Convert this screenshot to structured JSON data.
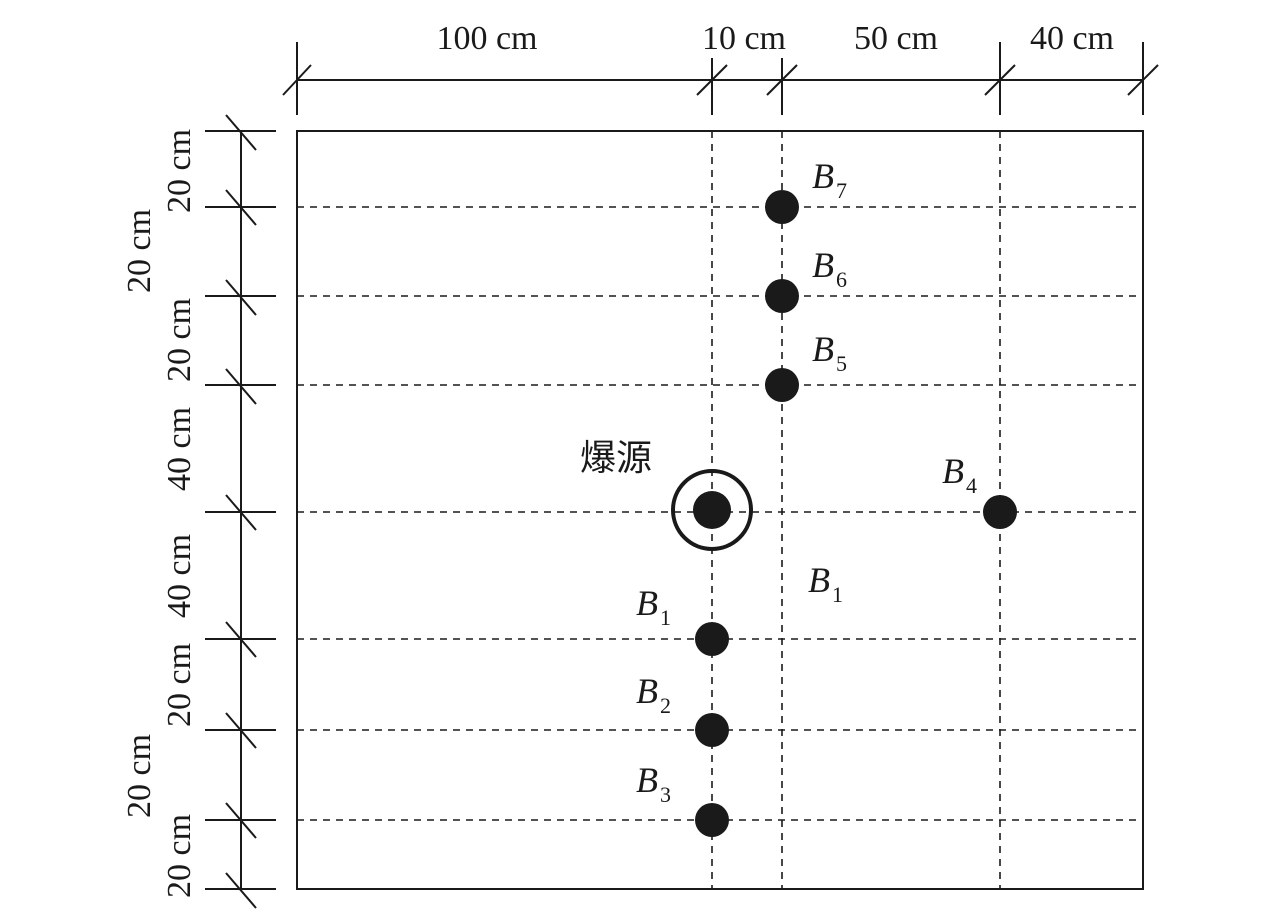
{
  "diagram": {
    "source_label": "爆源",
    "top_dimensions": [
      "100 cm",
      "10 cm",
      "50 cm",
      "40 cm"
    ],
    "left_dimensions": [
      "20 cm",
      "20 cm",
      "20 cm",
      "40 cm",
      "40 cm",
      "20 cm",
      "20 cm",
      "20 cm"
    ],
    "gauges": [
      {
        "letter": "B",
        "sub": "7"
      },
      {
        "letter": "B",
        "sub": "6"
      },
      {
        "letter": "B",
        "sub": "5"
      },
      {
        "letter": "B",
        "sub": "4"
      },
      {
        "letter": "B",
        "sub": "1"
      },
      {
        "letter": "B",
        "sub": "2"
      },
      {
        "letter": "B",
        "sub": "3"
      },
      {
        "letter": "B",
        "sub": "1"
      }
    ]
  }
}
